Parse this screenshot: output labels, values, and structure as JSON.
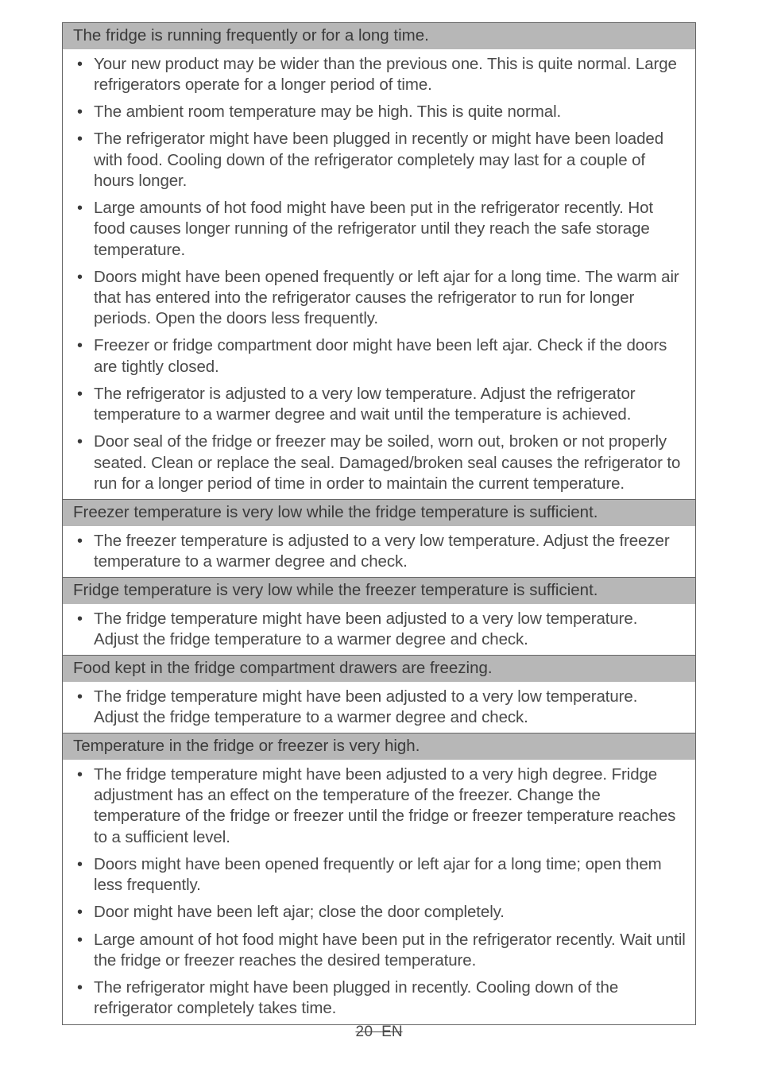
{
  "sections": [
    {
      "header": "The fridge is running frequently or for a long time.",
      "items": [
        "Your new product may be wider than the previous one. This is quite normal. Large refrigerators operate for a longer period of time.",
        "The ambient room temperature may be high. This is quite normal.",
        "The refrigerator might have been plugged in recently or might have been loaded with food. Cooling down of the refrigerator completely may last for a couple of hours longer.",
        "Large amounts of hot food might have been put in the refrigerator recently. Hot food causes longer running of the refrigerator until they reach the safe storage temperature.",
        "Doors might have been opened frequently or left ajar for a long time. The warm air that has entered into the refrigerator causes the refrigerator to run for longer periods. Open the doors less frequently.",
        "Freezer or fridge compartment door might have been left ajar. Check if the doors are tightly closed.",
        "The refrigerator is adjusted to a very low temperature. Adjust the refrigerator temperature to a warmer degree and wait until the temperature is achieved.",
        "Door seal of the fridge or freezer may be soiled, worn out, broken or not properly seated. Clean or replace the seal. Damaged/broken seal causes the refrigerator to run for a longer period of time in order to maintain the current temperature."
      ]
    },
    {
      "header": "Freezer temperature is very low while the fridge temperature is sufficient.",
      "items": [
        "The freezer temperature is adjusted to a very low temperature. Adjust the freezer temperature to a warmer degree and check."
      ]
    },
    {
      "header": "Fridge temperature is very low while the freezer temperature is sufficient.",
      "items": [
        "The fridge temperature might have been adjusted to a very low temperature. Adjust the fridge temperature to a warmer degree and check."
      ]
    },
    {
      "header": "Food kept in the fridge compartment drawers are freezing.",
      "items": [
        "The fridge temperature might have been adjusted to a very low temperature. Adjust the fridge temperature to a warmer degree and check."
      ]
    },
    {
      "header": "Temperature in the fridge or freezer is very high.",
      "items": [
        "The fridge temperature might have been adjusted to a very high degree. Fridge adjustment has an effect on the temperature of the freezer. Change the temperature of the fridge or freezer until the fridge or freezer temperature reaches to a sufficient level.",
        "Doors might have been opened frequently or left ajar for a long time; open them less frequently.",
        "Door might have been left ajar; close the door completely.",
        "Large amount of hot food might have been put in the refrigerator recently. Wait until the fridge or freezer reaches the desired temperature.",
        "The refrigerator might have been plugged in recently. Cooling down of the refrigerator completely takes time."
      ]
    }
  ],
  "footer": {
    "page": "20",
    "lang": "EN"
  }
}
